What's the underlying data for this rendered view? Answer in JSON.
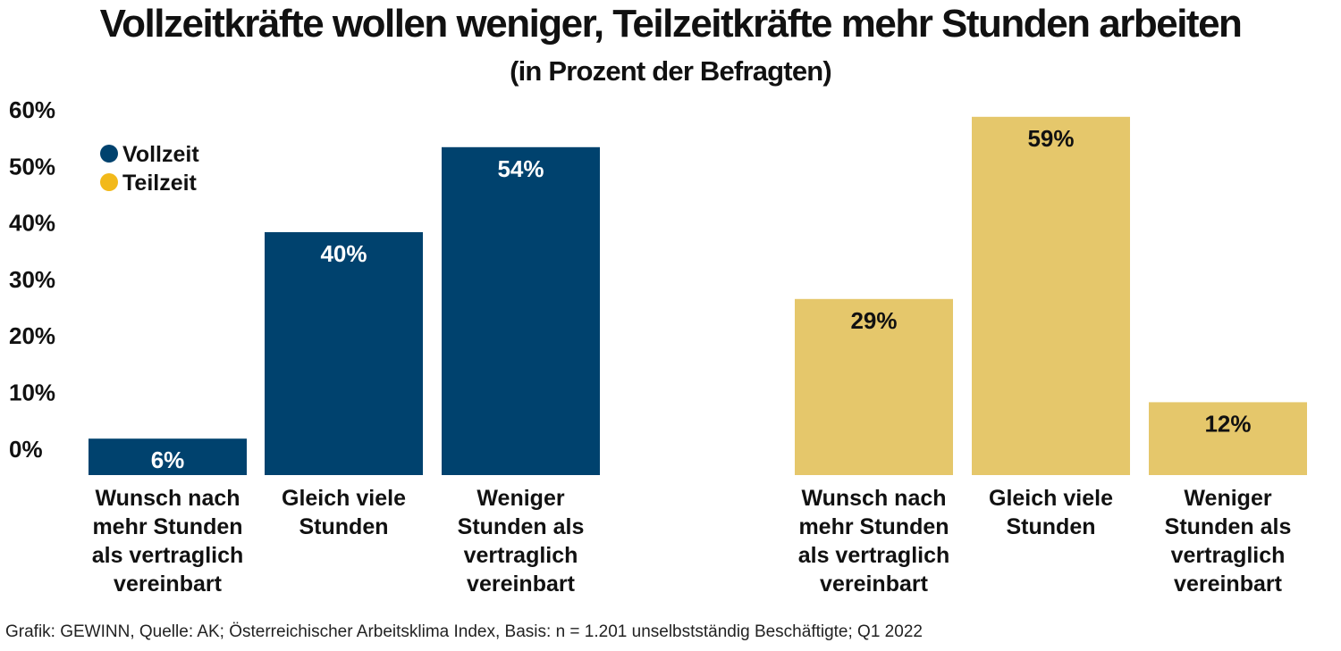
{
  "title": "Vollzeitkräfte wollen weniger, Teilzeitkräfte mehr Stunden arbeiten",
  "subtitle": "(in Prozent der Befragten)",
  "source": "Grafik: GEWINN, Quelle: AK; Österreichischer Arbeitsklima Index, Basis: n = 1.201 unselbstständig Beschäftigte; Q1 2022",
  "chart_data": {
    "type": "bar",
    "y_ticks": [
      "60%",
      "50%",
      "40%",
      "30%",
      "20%",
      "10%",
      "0%"
    ],
    "ylim": [
      0,
      60
    ],
    "grid": false,
    "legend_position": "top-left",
    "legend": [
      {
        "name": "Vollzeit",
        "color": "#00426e"
      },
      {
        "name": "Teilzeit",
        "color": "#f2b91a"
      }
    ],
    "categories": [
      [
        "Wunsch nach",
        "mehr Stunden",
        "als vertraglich",
        "vereinbart"
      ],
      [
        "Gleich viele",
        "Stunden"
      ],
      [
        "Weniger",
        "Stunden als",
        "vertraglich",
        "vereinbart"
      ]
    ],
    "series": [
      {
        "name": "Vollzeit",
        "color": "#00426e",
        "label_color": "#ffffff",
        "values": [
          6,
          40,
          54
        ],
        "labels": [
          "6%",
          "40%",
          "54%"
        ]
      },
      {
        "name": "Teilzeit",
        "color": "#e5c76b",
        "label_color": "#111111",
        "values": [
          29,
          59,
          12
        ],
        "labels": [
          "29%",
          "59%",
          "12%"
        ]
      }
    ]
  }
}
